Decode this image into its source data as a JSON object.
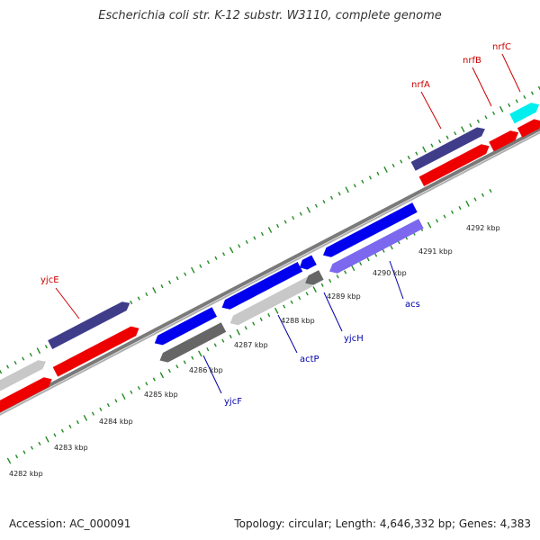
{
  "title": "Escherichia coli str. K-12 substr. W3110, complete genome",
  "footer": {
    "accession": "Accession: AC_000091",
    "summary": "Topology: circular; Length: 4,646,332 bp; Genes: 4,383"
  },
  "map": {
    "type": "circular genome map (zoomed segment)",
    "ticks": [
      "4282 kbp",
      "4283 kbp",
      "4284 kbp",
      "4285 kbp",
      "4286 kbp",
      "4287 kbp",
      "4288 kbp",
      "4289 kbp",
      "4290 kbp",
      "4291 kbp",
      "4292 kbp"
    ],
    "gene_labels": {
      "forward": [
        "yjcE",
        "nrfA",
        "nrfB",
        "nrfC"
      ],
      "reverse": [
        "yjcF",
        "actP",
        "yjcH",
        "acs"
      ]
    },
    "colors": {
      "forward_label": "#cc0000",
      "reverse_label": "#0000aa",
      "cds_blue": "#0000ee",
      "cds_light_blue": "#7b68ee",
      "cds_red": "#ee0000",
      "cds_dark_slate": "#3f3d8a",
      "cds_cyan": "#00eeee",
      "cds_gray": "#666666",
      "cds_light_gray": "#c8c8c8",
      "tick_mark": "#228b22",
      "backbone": "#888888"
    }
  }
}
